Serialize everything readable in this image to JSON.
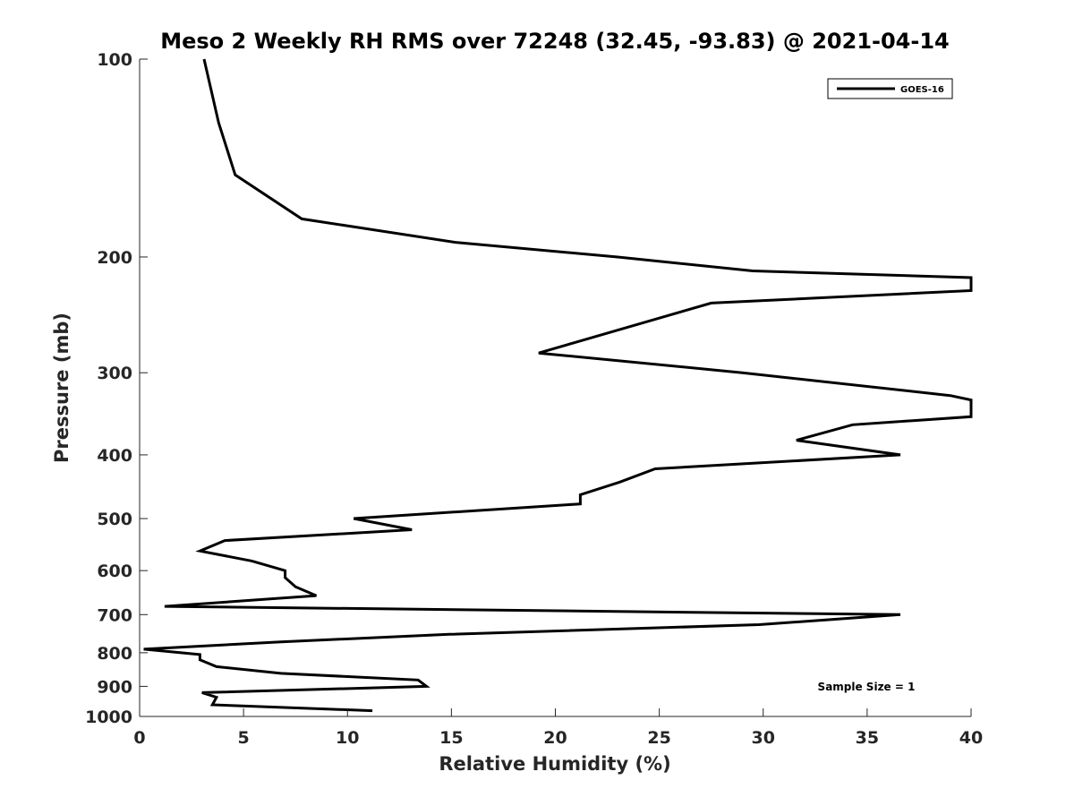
{
  "chart_data": {
    "type": "line",
    "title": "Meso 2 Weekly RH RMS over 72248 (32.45, -93.83) @ 2021-04-14",
    "xlabel": "Relative Humidity (%)",
    "ylabel": "Pressure (mb)",
    "xlim": [
      0,
      40
    ],
    "ylim": [
      100,
      1000
    ],
    "y_scale": "log",
    "y_reversed": true,
    "grid": false,
    "legend_position": "top-right",
    "x_ticks": [
      0,
      5,
      10,
      15,
      20,
      25,
      30,
      35,
      40
    ],
    "y_ticks": [
      100,
      200,
      300,
      400,
      500,
      600,
      700,
      800,
      900,
      1000
    ],
    "annotation": "Sample Size = 1",
    "series": [
      {
        "name": "GOES-16",
        "color": "#000000",
        "points": [
          [
            3.1,
            100
          ],
          [
            3.8,
            125
          ],
          [
            4.6,
            150
          ],
          [
            7.8,
            175
          ],
          [
            15.2,
            190
          ],
          [
            23.0,
            200
          ],
          [
            29.5,
            210
          ],
          [
            40,
            215
          ],
          [
            40,
            225
          ],
          [
            27.5,
            235
          ],
          [
            21.8,
            265
          ],
          [
            19.2,
            280
          ],
          [
            29.0,
            300
          ],
          [
            39.0,
            325
          ],
          [
            40,
            330
          ],
          [
            40,
            350
          ],
          [
            34.3,
            360
          ],
          [
            31.6,
            380
          ],
          [
            36.6,
            400
          ],
          [
            24.8,
            420
          ],
          [
            23.1,
            440
          ],
          [
            21.2,
            460
          ],
          [
            21.2,
            475
          ],
          [
            10.3,
            500
          ],
          [
            13.1,
            520
          ],
          [
            4.1,
            540
          ],
          [
            2.9,
            560
          ],
          [
            5.4,
            580
          ],
          [
            7.0,
            600
          ],
          [
            7.0,
            615
          ],
          [
            7.5,
            635
          ],
          [
            8.5,
            655
          ],
          [
            1.2,
            680
          ],
          [
            36.6,
            700
          ],
          [
            29.8,
            725
          ],
          [
            14.9,
            750
          ],
          [
            6.8,
            770
          ],
          [
            0.2,
            790
          ],
          [
            2.9,
            805
          ],
          [
            2.9,
            820
          ],
          [
            3.7,
            840
          ],
          [
            6.8,
            860
          ],
          [
            13.4,
            880
          ],
          [
            13.8,
            900
          ],
          [
            3.0,
            920
          ],
          [
            3.7,
            935
          ],
          [
            3.5,
            960
          ],
          [
            11.2,
            980
          ]
        ]
      }
    ]
  }
}
